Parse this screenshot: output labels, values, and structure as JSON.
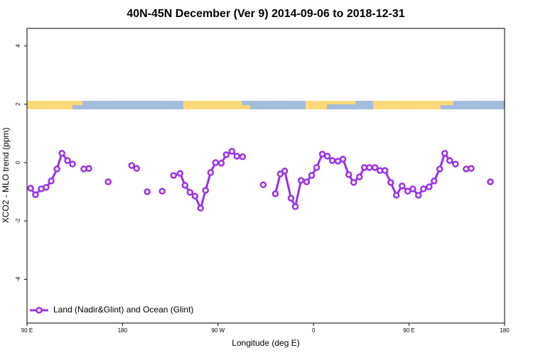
{
  "chart_data": {
    "type": "line",
    "title": "40N-45N December (Ver 9)   2014-09-06 to 2018-12-31",
    "x_label": "Longitude (deg E)",
    "y_label": "XCO2 - MLO trend (ppm)",
    "xlim": [
      90,
      540
    ],
    "ylim": [
      -5.5,
      4.6
    ],
    "xticks": [
      {
        "value": 90,
        "label": "90 E"
      },
      180,
      {
        "value": 270,
        "label": "90 W"
      },
      {
        "value": 360,
        "label": "0"
      },
      {
        "value": 450,
        "label": "90 E"
      },
      {
        "value": 540,
        "label": "180"
      }
    ],
    "yticks": [
      -4,
      -2,
      0,
      2,
      4
    ],
    "legend_position": "bottom-left",
    "x": [
      93.4,
      98,
      103.4,
      108,
      112.8,
      118.2,
      122.9,
      128.2,
      132.9,
      138,
      143.6,
      148.3,
      157,
      166.5,
      178,
      188.6,
      193.3,
      198,
      203.3,
      210,
      217.4,
      223,
      228.1,
      234.2,
      238.9,
      243.6,
      248.3,
      253.6,
      258.3,
      263,
      267.7,
      273.1,
      277.8,
      283.1,
      287.8,
      293.2,
      303,
      312.6,
      318,
      324,
      328.7,
      332.8,
      338.8,
      342.8,
      348.2,
      353.5,
      358.2,
      362.9,
      368.3,
      373,
      377.7,
      383,
      387.7,
      393.1,
      397.8,
      403.2,
      407.9,
      412.6,
      417.9,
      422.6,
      427.3,
      432.7,
      438,
      443.4,
      448.8,
      453.5,
      458.8,
      463.5,
      468.9,
      473.6,
      478.9,
      483.6,
      488.3,
      493.7,
      499,
      503.8,
      508.5,
      517,
      526.6
    ],
    "series": [
      {
        "name": "Land (Nadir&Glint) and Ocean (Glint)",
        "color": "#9b30e8",
        "values": [
          -0.88,
          -1.1,
          -0.9,
          -0.85,
          -0.63,
          -0.22,
          0.32,
          0.07,
          -0.05,
          null,
          -0.22,
          -0.2,
          null,
          -0.66,
          null,
          -0.1,
          -0.2,
          null,
          -1.0,
          null,
          -0.98,
          null,
          -0.44,
          -0.37,
          -0.78,
          -1.02,
          -1.15,
          -1.56,
          -0.95,
          -0.34,
          0,
          -0.02,
          0.27,
          0.39,
          0.22,
          0.2,
          null,
          -0.76,
          null,
          -1.07,
          -0.39,
          -0.29,
          -1.22,
          -1.51,
          -0.61,
          -0.66,
          -0.44,
          -0.17,
          0.29,
          0.22,
          0.07,
          0.05,
          0.12,
          -0.41,
          -0.68,
          -0.49,
          -0.17,
          -0.17,
          -0.17,
          -0.27,
          -0.27,
          -0.68,
          -1.12,
          -0.8,
          -0.98,
          -0.9,
          -1.12,
          -0.9,
          -0.83,
          -0.63,
          -0.22,
          0.32,
          0.07,
          -0.05,
          null,
          -0.22,
          -0.2,
          null,
          -0.66
        ]
      }
    ]
  }
}
